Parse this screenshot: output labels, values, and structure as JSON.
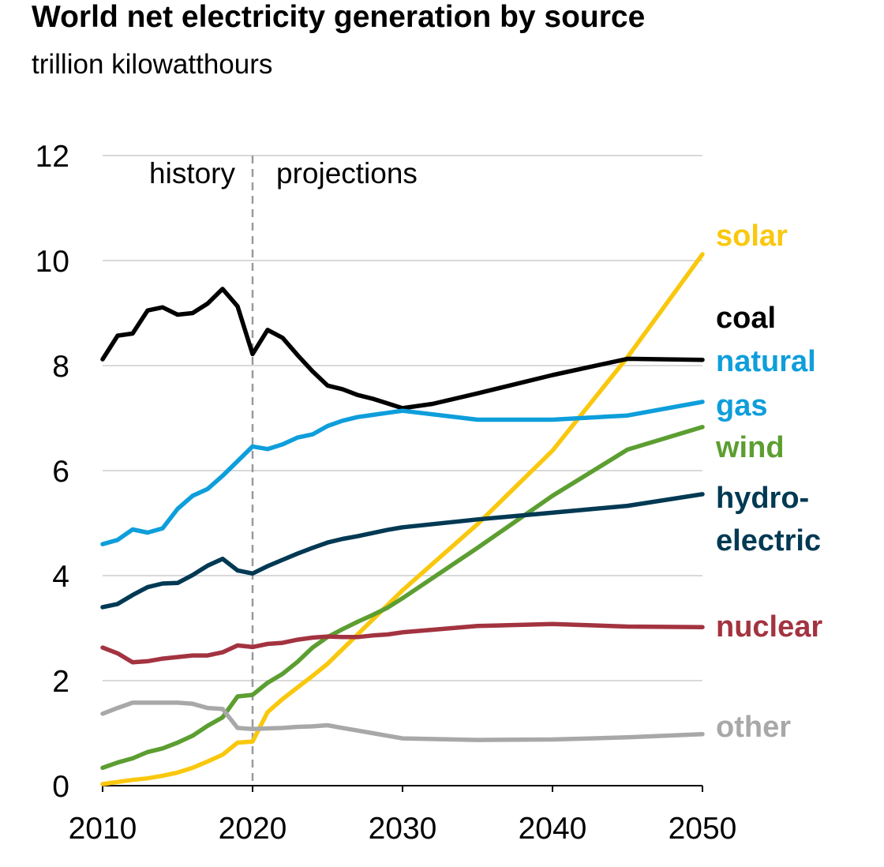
{
  "chart_data": {
    "type": "line",
    "title": "World net electricity generation by source",
    "subtitle": "trillion kilowatthours",
    "xlim": [
      2010,
      2050
    ],
    "ylim": [
      0,
      12
    ],
    "x_ticks": [
      2010,
      2020,
      2030,
      2040,
      2050
    ],
    "y_ticks": [
      0,
      2,
      4,
      6,
      8,
      10,
      12
    ],
    "grid": true,
    "divider_year": 2020,
    "regions": {
      "left": "history",
      "right": "projections"
    },
    "series": [
      {
        "name": "solar",
        "label_lines": [
          "solar"
        ],
        "color": "#f9c80e",
        "x": [
          2010,
          2011,
          2012,
          2013,
          2014,
          2015,
          2016,
          2017,
          2018,
          2019,
          2020,
          2021,
          2022,
          2023,
          2024,
          2025,
          2026,
          2027,
          2028,
          2029,
          2030,
          2035,
          2040,
          2045,
          2050
        ],
        "y": [
          0.03,
          0.07,
          0.11,
          0.14,
          0.19,
          0.25,
          0.34,
          0.46,
          0.59,
          0.82,
          0.84,
          1.4,
          1.65,
          1.87,
          2.09,
          2.32,
          2.6,
          2.88,
          3.16,
          3.44,
          3.72,
          4.98,
          6.38,
          8.16,
          10.12
        ]
      },
      {
        "name": "coal",
        "label_lines": [
          "coal"
        ],
        "color": "#000000",
        "x": [
          2010,
          2011,
          2012,
          2013,
          2014,
          2015,
          2016,
          2017,
          2018,
          2019,
          2020,
          2021,
          2022,
          2023,
          2024,
          2025,
          2026,
          2027,
          2028,
          2029,
          2030,
          2032,
          2035,
          2040,
          2045,
          2050
        ],
        "y": [
          8.12,
          8.57,
          8.61,
          9.05,
          9.11,
          8.97,
          9.0,
          9.18,
          9.46,
          9.13,
          8.22,
          8.68,
          8.53,
          8.2,
          7.89,
          7.62,
          7.55,
          7.44,
          7.37,
          7.28,
          7.19,
          7.27,
          7.47,
          7.82,
          8.13,
          8.11
        ]
      },
      {
        "name": "natural gas",
        "label_lines": [
          "natural",
          "gas"
        ],
        "color": "#0e9edb",
        "x": [
          2010,
          2011,
          2012,
          2013,
          2014,
          2015,
          2016,
          2017,
          2018,
          2019,
          2020,
          2021,
          2022,
          2023,
          2024,
          2025,
          2026,
          2027,
          2028,
          2029,
          2030,
          2035,
          2040,
          2045,
          2050
        ],
        "y": [
          4.6,
          4.68,
          4.88,
          4.82,
          4.9,
          5.27,
          5.52,
          5.65,
          5.9,
          6.18,
          6.46,
          6.41,
          6.5,
          6.63,
          6.69,
          6.85,
          6.95,
          7.02,
          7.06,
          7.1,
          7.14,
          6.97,
          6.97,
          7.05,
          7.31
        ]
      },
      {
        "name": "wind",
        "label_lines": [
          "wind"
        ],
        "color": "#5c9e31",
        "x": [
          2010,
          2011,
          2012,
          2013,
          2014,
          2015,
          2016,
          2017,
          2018,
          2019,
          2020,
          2021,
          2022,
          2023,
          2024,
          2025,
          2026,
          2027,
          2028,
          2029,
          2030,
          2035,
          2040,
          2045,
          2050
        ],
        "y": [
          0.34,
          0.44,
          0.52,
          0.64,
          0.71,
          0.82,
          0.95,
          1.14,
          1.3,
          1.7,
          1.73,
          1.96,
          2.13,
          2.36,
          2.63,
          2.83,
          2.98,
          3.12,
          3.25,
          3.39,
          3.57,
          4.53,
          5.52,
          6.4,
          6.83
        ]
      },
      {
        "name": "hydroelectric",
        "label_lines": [
          "hydro-",
          "electric"
        ],
        "color": "#003953",
        "x": [
          2010,
          2011,
          2012,
          2013,
          2014,
          2015,
          2016,
          2017,
          2018,
          2019,
          2020,
          2021,
          2022,
          2023,
          2024,
          2025,
          2026,
          2027,
          2028,
          2029,
          2030,
          2035,
          2040,
          2045,
          2050
        ],
        "y": [
          3.4,
          3.46,
          3.63,
          3.78,
          3.85,
          3.86,
          4.01,
          4.19,
          4.32,
          4.1,
          4.04,
          4.18,
          4.3,
          4.42,
          4.53,
          4.63,
          4.7,
          4.75,
          4.81,
          4.87,
          4.92,
          5.07,
          5.2,
          5.33,
          5.55
        ]
      },
      {
        "name": "nuclear",
        "label_lines": [
          "nuclear"
        ],
        "color": "#a33340",
        "x": [
          2010,
          2011,
          2012,
          2013,
          2014,
          2015,
          2016,
          2017,
          2018,
          2019,
          2020,
          2021,
          2022,
          2023,
          2024,
          2025,
          2026,
          2027,
          2028,
          2029,
          2030,
          2035,
          2040,
          2045,
          2050
        ],
        "y": [
          2.63,
          2.52,
          2.35,
          2.37,
          2.42,
          2.45,
          2.48,
          2.48,
          2.54,
          2.67,
          2.64,
          2.7,
          2.72,
          2.78,
          2.82,
          2.84,
          2.83,
          2.83,
          2.86,
          2.88,
          2.92,
          3.04,
          3.08,
          3.03,
          3.02
        ]
      },
      {
        "name": "other",
        "label_lines": [
          "other"
        ],
        "color": "#a8a8a8",
        "x": [
          2010,
          2011,
          2012,
          2013,
          2014,
          2015,
          2016,
          2017,
          2018,
          2019,
          2020,
          2021,
          2022,
          2023,
          2024,
          2025,
          2026,
          2027,
          2028,
          2029,
          2030,
          2035,
          2040,
          2045,
          2050
        ],
        "y": [
          1.37,
          1.48,
          1.58,
          1.58,
          1.58,
          1.58,
          1.56,
          1.48,
          1.46,
          1.1,
          1.08,
          1.09,
          1.1,
          1.12,
          1.13,
          1.15,
          1.1,
          1.05,
          1.0,
          0.95,
          0.9,
          0.87,
          0.88,
          0.92,
          0.98
        ]
      }
    ]
  }
}
